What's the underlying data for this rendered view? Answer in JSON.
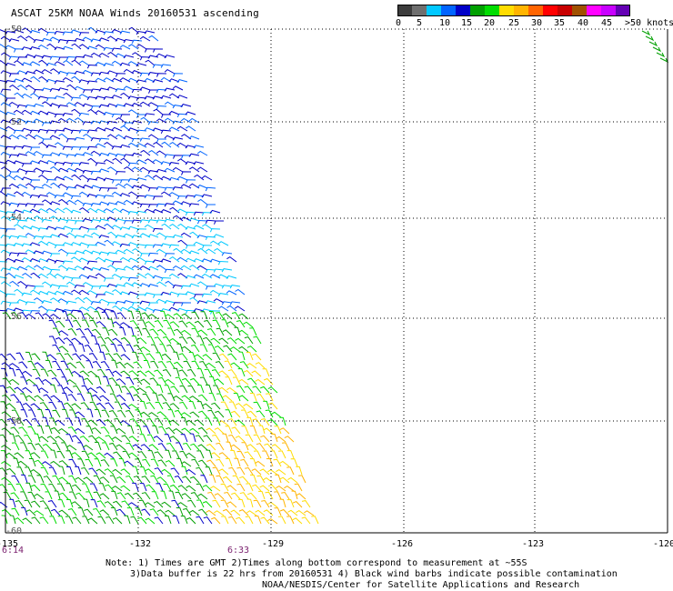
{
  "title": "ASCAT 25KM NOAA Winds 20160531 ascending",
  "colorbar": {
    "colors": [
      "#3c3c3c",
      "#6e6e6e",
      "#00c8ff",
      "#0064ff",
      "#0000c8",
      "#00a000",
      "#00dc00",
      "#ffdc00",
      "#ffb400",
      "#ff6400",
      "#ff0000",
      "#c80000",
      "#a05000",
      "#ff00ff",
      "#c800ff",
      "#6400b4"
    ],
    "labels": [
      "0",
      "5",
      "10",
      "15",
      "20",
      "25",
      "30",
      "35",
      "40",
      "45",
      ">50 knots"
    ]
  },
  "axes": {
    "lon_ticks": [
      "-135",
      "-132",
      "-129",
      "-126",
      "-123",
      "-120"
    ],
    "lat_ticks": [
      "-50",
      "-52",
      "-54",
      "-56",
      "-58",
      "-60"
    ],
    "times": [
      "6:14",
      "6:33"
    ]
  },
  "notes": {
    "line1": "Note: 1) Times are GMT 2)Times along bottom correspond to measurement at ~55S",
    "line2": "3)Data buffer is 22 hrs from 20160531 4) Black wind barbs indicate possible contamination",
    "line3": "NOAA/NESDIS/Center for Satellite Applications and Research"
  }
}
